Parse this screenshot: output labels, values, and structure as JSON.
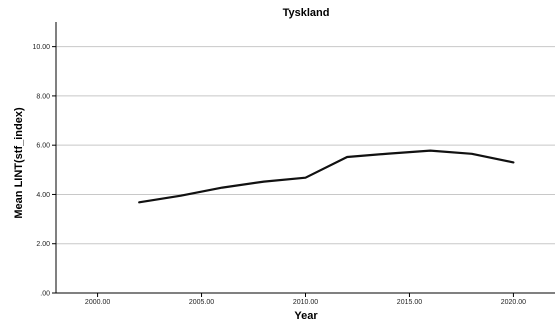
{
  "chart_data": {
    "type": "line",
    "title": "Tyskland",
    "xlabel": "Year",
    "ylabel": "Mean LINT(stf_index)",
    "xlim": [
      1998,
      2022
    ],
    "ylim": [
      0,
      11
    ],
    "x_ticks": [
      2000,
      2005,
      2010,
      2015,
      2020
    ],
    "x_tick_labels": [
      "2000.00",
      "2005.00",
      "2010.00",
      "2015.00",
      "2020.00"
    ],
    "y_ticks": [
      0,
      2,
      4,
      6,
      8,
      10
    ],
    "y_tick_labels": [
      ".00",
      "2.00",
      "4.00",
      "6.00",
      "8.00",
      "10.00"
    ],
    "grid": "horizontal",
    "line_color": "#111111",
    "grid_color": "#c8c8c8",
    "series": [
      {
        "x": [
          2002,
          2004,
          2006,
          2008,
          2010,
          2012,
          2014,
          2016,
          2018,
          2020
        ],
        "y": [
          3.68,
          3.95,
          4.28,
          4.52,
          4.68,
          5.52,
          5.66,
          5.78,
          5.65,
          5.3
        ]
      }
    ]
  }
}
